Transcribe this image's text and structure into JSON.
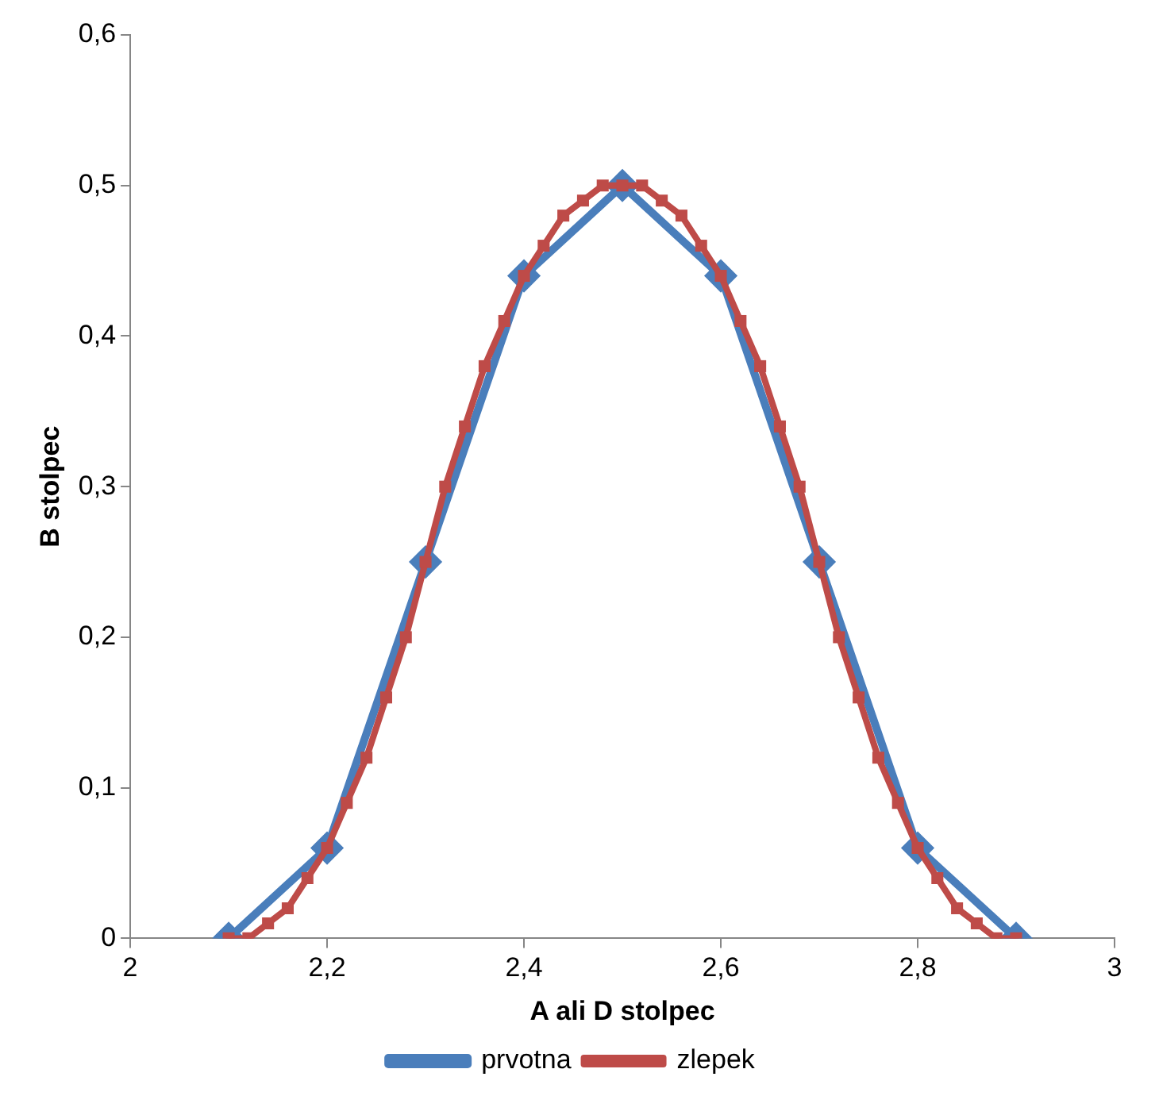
{
  "chart_data": {
    "type": "line",
    "xlabel": "A ali D stolpec",
    "ylabel": "B stolpec",
    "xlim": [
      2,
      3
    ],
    "xticks": [
      2,
      {
        "value": 2.2,
        "label": "2,2"
      },
      {
        "value": 2.4,
        "label": "2,4"
      },
      {
        "value": 2.6,
        "label": "2,6"
      },
      {
        "value": 2.8,
        "label": "2,8"
      },
      3
    ],
    "ylim": [
      0,
      0.6
    ],
    "yticks": [
      0,
      {
        "value": 0.1,
        "label": "0,1"
      },
      {
        "value": 0.2,
        "label": "0,2"
      },
      {
        "value": 0.3,
        "label": "0,3"
      },
      {
        "value": 0.4,
        "label": "0,4"
      },
      {
        "value": 0.5,
        "label": "0,5"
      },
      {
        "value": 0.6,
        "label": "0,6"
      }
    ],
    "grid": false,
    "legend": "bottom",
    "series": [
      {
        "name": "prvotna",
        "color": "#4a7ebb",
        "marker": "diamond",
        "x": [
          2.1,
          2.2,
          2.3,
          2.4,
          2.5,
          2.6,
          2.7,
          2.8,
          2.9
        ],
        "values": [
          0,
          0.06,
          0.25,
          0.44,
          0.5,
          0.44,
          0.25,
          0.06,
          0
        ]
      },
      {
        "name": "zlepek",
        "color": "#be4b48",
        "marker": "square",
        "x": [
          2.1,
          2.12,
          2.14,
          2.16,
          2.18,
          2.2,
          2.22,
          2.24,
          2.26,
          2.28,
          2.3,
          2.32,
          2.34,
          2.36,
          2.38,
          2.4,
          2.42,
          2.44,
          2.46,
          2.48,
          2.5,
          2.52,
          2.54,
          2.56,
          2.58,
          2.6,
          2.62,
          2.64,
          2.66,
          2.68,
          2.7,
          2.72,
          2.74,
          2.76,
          2.78,
          2.8,
          2.82,
          2.84,
          2.86,
          2.88,
          2.9
        ],
        "values": [
          0,
          0,
          0.01,
          0.02,
          0.04,
          0.06,
          0.09,
          0.12,
          0.16,
          0.2,
          0.25,
          0.3,
          0.34,
          0.38,
          0.41,
          0.44,
          0.46,
          0.48,
          0.49,
          0.5,
          0.5,
          0.5,
          0.49,
          0.48,
          0.46,
          0.44,
          0.41,
          0.38,
          0.34,
          0.3,
          0.25,
          0.2,
          0.16,
          0.12,
          0.09,
          0.06,
          0.04,
          0.02,
          0.01,
          0,
          0
        ]
      }
    ]
  }
}
